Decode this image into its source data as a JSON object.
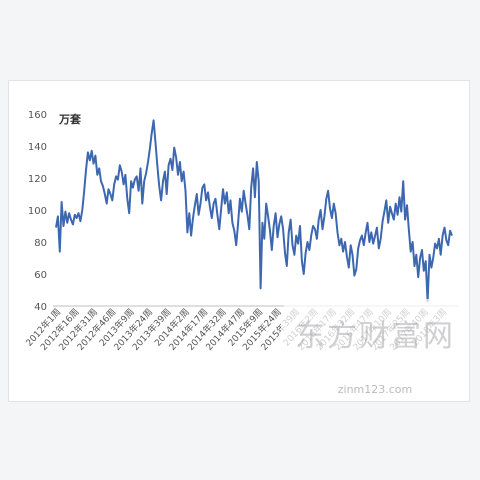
{
  "chart_data": {
    "type": "line",
    "unit_label": "万套",
    "ylim": [
      40,
      160
    ],
    "yticks": [
      40,
      60,
      80,
      100,
      120,
      140,
      160
    ],
    "grid": false,
    "legend": "none",
    "x_tick_labels": [
      "2012年1周",
      "2012年16周",
      "2012年31周",
      "2012年46周",
      "2013年9周",
      "2013年24周",
      "2013年39周",
      "2014年2周",
      "2014年17周",
      "2014年32周",
      "2014年47周",
      "2015年9周",
      "2015年24周",
      "2015年39周",
      "2016年2周",
      "2016年17周",
      "2016年32周",
      "2016年47周",
      "2017年10周",
      "2017年25周",
      "2017年40周",
      "2018年3周"
    ],
    "series": [
      {
        "color": "#3d68b0",
        "values": [
          89,
          96,
          74,
          105,
          90,
          99,
          92,
          98,
          94,
          91,
          97,
          95,
          98,
          93,
          100,
          112,
          125,
          136,
          131,
          137,
          129,
          134,
          122,
          126,
          118,
          115,
          110,
          104,
          113,
          110,
          106,
          116,
          121,
          119,
          128,
          124,
          116,
          122,
          107,
          98,
          118,
          114,
          119,
          121,
          112,
          126,
          104,
          118,
          123,
          130,
          138,
          148,
          156,
          142,
          128,
          115,
          106,
          118,
          124,
          110,
          128,
          132,
          125,
          139,
          133,
          122,
          130,
          118,
          124,
          112,
          86,
          98,
          84,
          95,
          103,
          110,
          97,
          104,
          114,
          116,
          106,
          111,
          102,
          95,
          104,
          107,
          97,
          88,
          101,
          113,
          104,
          111,
          98,
          106,
          92,
          87,
          78,
          91,
          107,
          99,
          112,
          104,
          97,
          88,
          114,
          126,
          108,
          130,
          118,
          51,
          92,
          82,
          104,
          96,
          87,
          75,
          90,
          98,
          83,
          91,
          96,
          88,
          73,
          65,
          86,
          94,
          78,
          72,
          84,
          79,
          90,
          68,
          60,
          73,
          80,
          75,
          84,
          90,
          88,
          82,
          94,
          100,
          88,
          96,
          107,
          112,
          101,
          95,
          104,
          98,
          86,
          78,
          82,
          74,
          80,
          71,
          64,
          78,
          72,
          59,
          63,
          76,
          81,
          84,
          78,
          86,
          92,
          80,
          86,
          79,
          84,
          89,
          76,
          82,
          93,
          99,
          106,
          92,
          102,
          98,
          94,
          104,
          97,
          108,
          99,
          118,
          94,
          103,
          88,
          74,
          80,
          65,
          72,
          58,
          70,
          75,
          62,
          68,
          43,
          72,
          64,
          70,
          79,
          76,
          82,
          72,
          84,
          89,
          81,
          78,
          87,
          84
        ]
      }
    ]
  },
  "watermark": {
    "text": "东方财富网",
    "url": "zinm123.com"
  }
}
